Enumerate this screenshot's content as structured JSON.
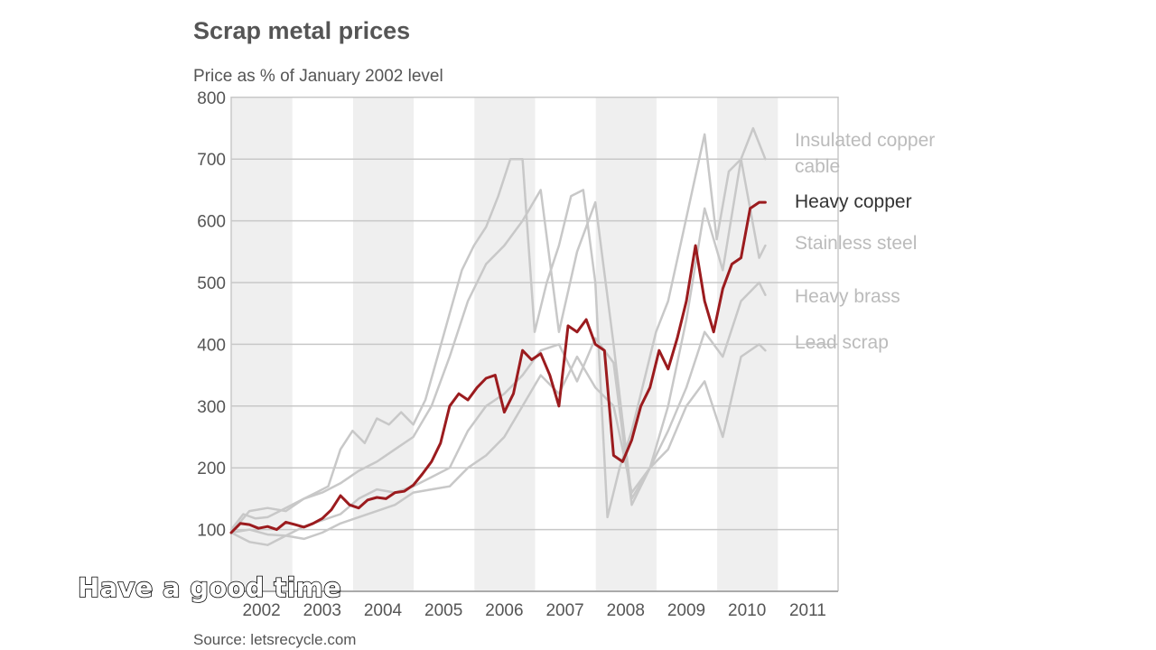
{
  "caption": "Have a good time",
  "chart_data": {
    "type": "line",
    "title": "Scrap metal prices",
    "subtitle": "Price as % of January 2002 level",
    "source": "Source: letsrecycle.com",
    "xlabel": "",
    "ylabel": "",
    "xlim": [
      2002,
      2011
    ],
    "ylim": [
      0,
      800
    ],
    "y_ticks": [
      100,
      200,
      300,
      400,
      500,
      600,
      700,
      800
    ],
    "x_tick_labels": [
      "2002",
      "2003",
      "2004",
      "2005",
      "2006",
      "2007",
      "2008",
      "2009",
      "2010",
      "2011"
    ],
    "grid": true,
    "legend": "right-end labels",
    "colors": {
      "highlight": "#9b1b1e",
      "muted": "#c8c8c8",
      "band": "#efefef",
      "grid": "#c8c8c8"
    },
    "series": [
      {
        "name": "Insulated copper cable",
        "label_lines": [
          "Insulated copper",
          "cable"
        ],
        "highlight": false,
        "x": [
          2002,
          2002.2,
          2002.4,
          2002.6,
          2002.8,
          2003,
          2003.2,
          2003.4,
          2003.6,
          2003.8,
          2004,
          2004.2,
          2004.4,
          2004.6,
          2004.8,
          2005,
          2005.2,
          2005.4,
          2005.6,
          2005.8,
          2006,
          2006.2,
          2006.4,
          2006.6,
          2006.8,
          2007,
          2007.2,
          2007.4,
          2007.6,
          2007.8,
          2008,
          2008.2,
          2008.4,
          2008.6,
          2008.8,
          2009,
          2009.2,
          2009.4,
          2009.6,
          2009.8,
          2010,
          2010.2,
          2010.4,
          2010.6,
          2010.8
        ],
        "values": [
          100,
          125,
          118,
          120,
          130,
          140,
          150,
          160,
          170,
          230,
          260,
          240,
          280,
          270,
          290,
          270,
          310,
          380,
          450,
          520,
          560,
          590,
          640,
          700,
          700,
          420,
          500,
          560,
          640,
          650,
          500,
          120,
          200,
          260,
          340,
          420,
          470,
          560,
          650,
          740,
          570,
          680,
          700,
          750,
          700
        ]
      },
      {
        "name": "Heavy copper",
        "highlight": true,
        "x": [
          2002,
          2002.15,
          2002.3,
          2002.45,
          2002.6,
          2002.75,
          2002.9,
          2003.05,
          2003.2,
          2003.35,
          2003.5,
          2003.65,
          2003.8,
          2003.95,
          2004.1,
          2004.25,
          2004.4,
          2004.55,
          2004.7,
          2004.85,
          2005,
          2005.15,
          2005.3,
          2005.45,
          2005.6,
          2005.75,
          2005.9,
          2006.05,
          2006.2,
          2006.35,
          2006.5,
          2006.65,
          2006.8,
          2006.95,
          2007.1,
          2007.25,
          2007.4,
          2007.55,
          2007.7,
          2007.85,
          2008,
          2008.15,
          2008.3,
          2008.45,
          2008.6,
          2008.75,
          2008.9,
          2009.05,
          2009.2,
          2009.35,
          2009.5,
          2009.65,
          2009.8,
          2009.95,
          2010.1,
          2010.25,
          2010.4,
          2010.55,
          2010.7,
          2010.8
        ],
        "values": [
          95,
          110,
          108,
          102,
          105,
          100,
          112,
          108,
          104,
          110,
          118,
          132,
          155,
          140,
          135,
          148,
          152,
          150,
          160,
          162,
          172,
          190,
          210,
          240,
          300,
          320,
          310,
          330,
          345,
          350,
          290,
          320,
          390,
          375,
          385,
          350,
          300,
          430,
          420,
          440,
          400,
          390,
          220,
          210,
          245,
          300,
          330,
          390,
          360,
          410,
          470,
          560,
          470,
          420,
          490,
          530,
          540,
          620,
          630,
          630
        ]
      },
      {
        "name": "Stainless steel",
        "highlight": false,
        "x": [
          2002,
          2002.3,
          2002.6,
          2002.9,
          2003.2,
          2003.5,
          2003.8,
          2004.1,
          2004.4,
          2004.7,
          2005,
          2005.3,
          2005.6,
          2005.9,
          2006.2,
          2006.5,
          2006.8,
          2007.1,
          2007.4,
          2007.7,
          2008,
          2008.3,
          2008.6,
          2008.9,
          2009.2,
          2009.5,
          2009.8,
          2010.1,
          2010.4,
          2010.7,
          2010.8
        ],
        "values": [
          95,
          130,
          135,
          130,
          150,
          160,
          175,
          195,
          210,
          230,
          250,
          300,
          380,
          470,
          530,
          560,
          600,
          650,
          420,
          550,
          630,
          400,
          150,
          200,
          300,
          440,
          620,
          520,
          700,
          540,
          560
        ]
      },
      {
        "name": "Heavy brass",
        "highlight": false,
        "x": [
          2002,
          2002.3,
          2002.6,
          2002.9,
          2003.2,
          2003.5,
          2003.8,
          2004.1,
          2004.4,
          2004.7,
          2005,
          2005.3,
          2005.6,
          2005.9,
          2006.2,
          2006.5,
          2006.8,
          2007.1,
          2007.4,
          2007.7,
          2008,
          2008.3,
          2008.6,
          2008.9,
          2009.2,
          2009.5,
          2009.8,
          2010.1,
          2010.4,
          2010.7,
          2010.8
        ],
        "values": [
          95,
          100,
          92,
          90,
          105,
          115,
          125,
          150,
          165,
          160,
          170,
          185,
          200,
          260,
          300,
          320,
          350,
          390,
          400,
          340,
          410,
          370,
          140,
          200,
          260,
          330,
          420,
          380,
          470,
          500,
          480
        ]
      },
      {
        "name": "Lead scrap",
        "highlight": false,
        "x": [
          2002,
          2002.3,
          2002.6,
          2002.9,
          2003.2,
          2003.5,
          2003.8,
          2004.1,
          2004.4,
          2004.7,
          2005,
          2005.3,
          2005.6,
          2005.9,
          2006.2,
          2006.5,
          2006.8,
          2007.1,
          2007.4,
          2007.7,
          2008,
          2008.3,
          2008.6,
          2008.9,
          2009.2,
          2009.5,
          2009.8,
          2010.1,
          2010.4,
          2010.7,
          2010.8
        ],
        "values": [
          95,
          80,
          75,
          90,
          85,
          95,
          110,
          120,
          130,
          140,
          160,
          165,
          170,
          200,
          220,
          250,
          300,
          350,
          320,
          380,
          330,
          300,
          160,
          200,
          230,
          300,
          340,
          250,
          380,
          400,
          390
        ]
      }
    ]
  }
}
